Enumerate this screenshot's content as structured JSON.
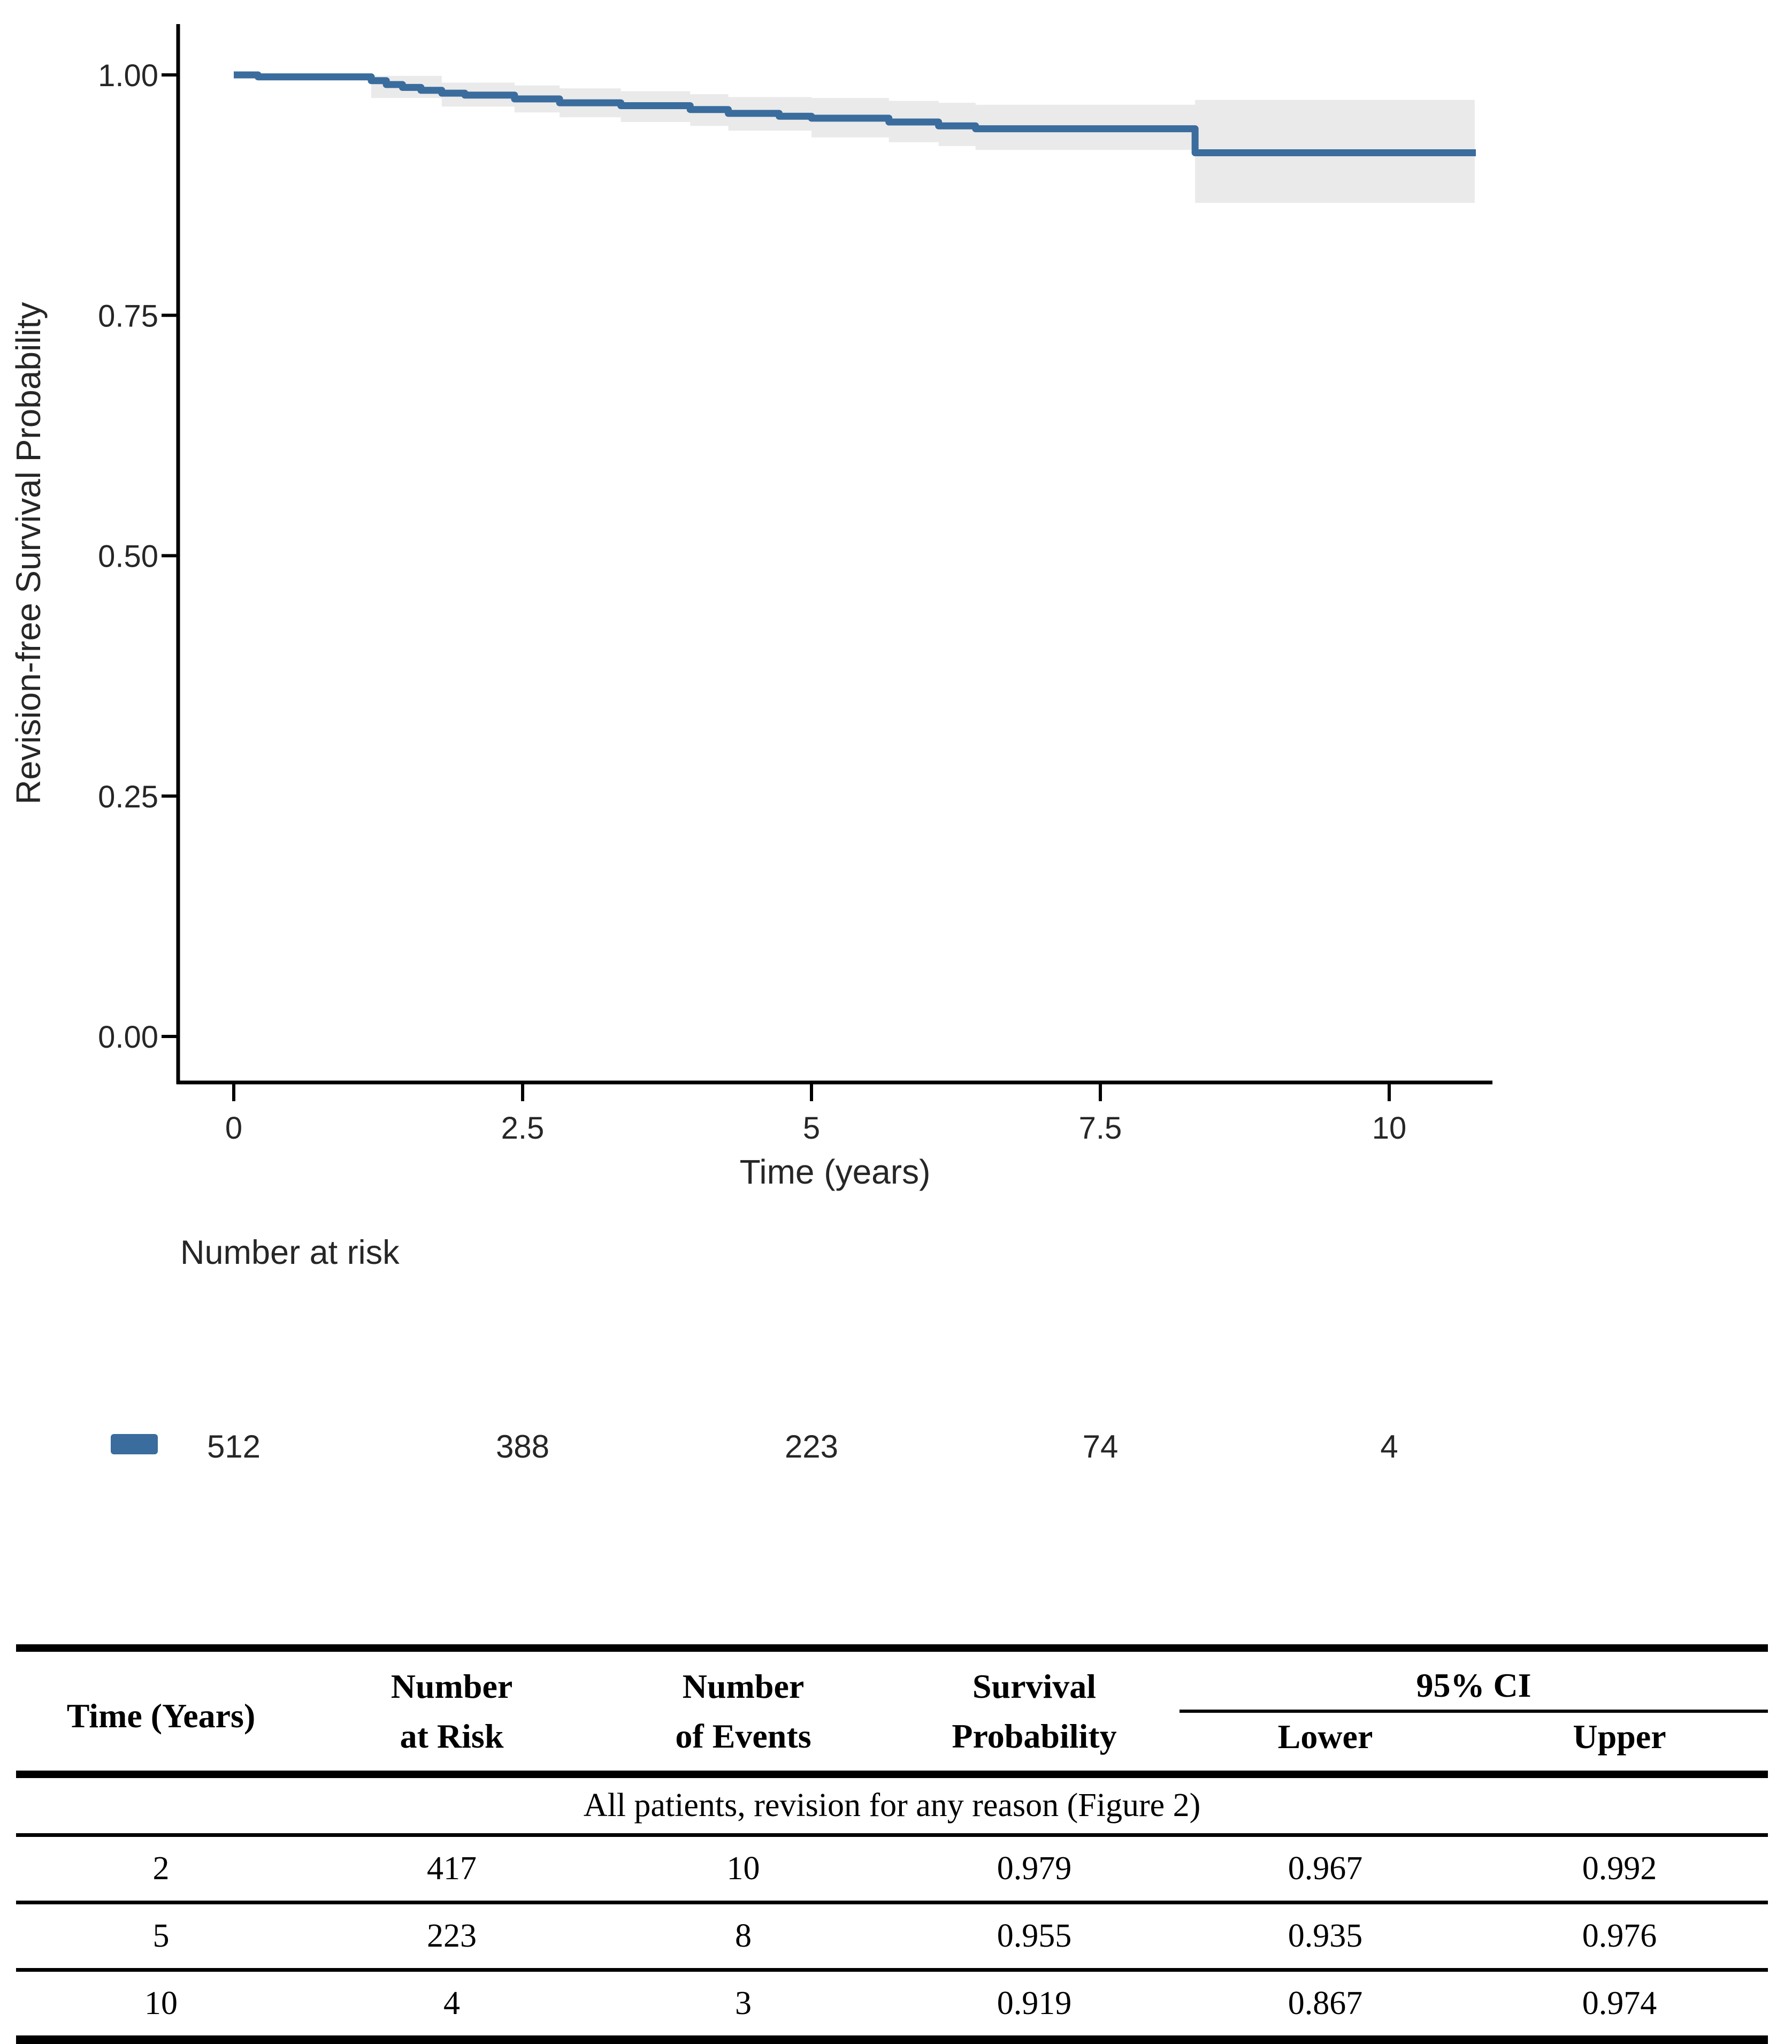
{
  "figure": {
    "y_axis_title": "Revision-free Survival Probability",
    "x_axis_title": "Time (years)",
    "risk_label": "Number at risk",
    "colors": {
      "line": "#3a6c9d",
      "ci_ribbon": "#eaeaea",
      "axis": "#000000",
      "plot_text": "#262626"
    }
  },
  "chart_data": {
    "type": "line",
    "subtype": "kaplan-meier-step",
    "title": "",
    "xlabel": "Time (years)",
    "ylabel": "Revision-free Survival Probability",
    "xlim": [
      0,
      10.9
    ],
    "ylim": [
      0,
      1.0
    ],
    "grid": false,
    "legend_position": "none",
    "x_ticks": [
      0,
      2.5,
      5,
      7.5,
      10
    ],
    "x_tick_labels": [
      "0",
      "2.5",
      "5",
      "7.5",
      "10"
    ],
    "y_ticks": [
      0,
      0.25,
      0.5,
      0.75,
      1.0
    ],
    "y_tick_labels": [
      "0.00",
      "0.25",
      "0.50",
      "0.75",
      "1.00"
    ],
    "series": [
      {
        "name": "All patients, revision for any reason",
        "color": "#3a6c9d",
        "t_end": 10.75,
        "steps": [
          [
            0,
            1.0
          ],
          [
            0.21,
            0.998
          ],
          [
            1.19,
            0.994
          ],
          [
            1.32,
            0.99
          ],
          [
            1.46,
            0.987
          ],
          [
            1.62,
            0.984
          ],
          [
            1.8,
            0.981
          ],
          [
            2.0,
            0.979
          ],
          [
            2.43,
            0.975
          ],
          [
            2.82,
            0.971
          ],
          [
            3.35,
            0.968
          ],
          [
            3.95,
            0.964
          ],
          [
            4.28,
            0.96
          ],
          [
            4.72,
            0.957
          ],
          [
            5.0,
            0.955
          ],
          [
            5.67,
            0.951
          ],
          [
            6.1,
            0.947
          ],
          [
            6.42,
            0.944
          ],
          [
            8.32,
            0.919
          ]
        ]
      }
    ],
    "ci_band": {
      "color": "#eaeaea",
      "t_end": 10.74,
      "segments": [
        [
          0.21,
          0.994,
          1.0
        ],
        [
          1.19,
          0.976,
          0.999
        ],
        [
          1.8,
          0.967,
          0.992
        ],
        [
          2.43,
          0.961,
          0.989
        ],
        [
          2.82,
          0.956,
          0.986
        ],
        [
          3.35,
          0.951,
          0.983
        ],
        [
          3.95,
          0.947,
          0.98
        ],
        [
          4.28,
          0.942,
          0.977
        ],
        [
          5.0,
          0.935,
          0.976
        ],
        [
          5.67,
          0.93,
          0.973
        ],
        [
          6.1,
          0.926,
          0.971
        ],
        [
          6.42,
          0.922,
          0.969
        ],
        [
          8.32,
          0.867,
          0.974
        ]
      ]
    },
    "number_at_risk": {
      "label": "Number at risk",
      "times": [
        0,
        2.5,
        5,
        7.5,
        10
      ],
      "counts": [
        "512",
        "388",
        "223",
        "74",
        "4"
      ]
    }
  },
  "table": {
    "headers": {
      "time": "Time (Years)",
      "number_risk_l1": "Number",
      "number_risk_l2": "at Risk",
      "number_events_l1": "Number",
      "number_events_l2": "of Events",
      "survival_l1": "Survival",
      "survival_l2": "Probability",
      "ci": "95% CI",
      "ci_lower": "Lower",
      "ci_upper": "Upper"
    },
    "group_label": "All patients, revision for any reason (Figure 2)",
    "rows": [
      [
        "2",
        "417",
        "10",
        "0.979",
        "0.967",
        "0.992"
      ],
      [
        "5",
        "223",
        "8",
        "0.955",
        "0.935",
        "0.976"
      ],
      [
        "10",
        "4",
        "3",
        "0.919",
        "0.867",
        "0.974"
      ]
    ]
  }
}
